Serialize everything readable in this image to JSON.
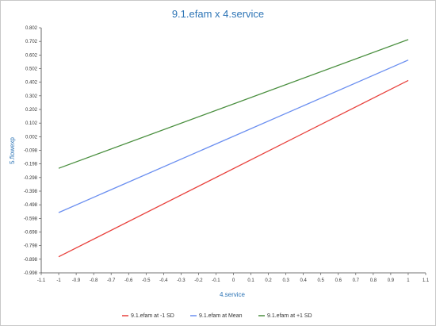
{
  "chart_data": {
    "type": "line",
    "title": "9.1.efam x 4.service",
    "xlabel": "4.service",
    "ylabel": "5.flowexp",
    "xlim": [
      -1.1,
      1.1
    ],
    "ylim": [
      -0.998,
      0.802
    ],
    "x_ticks": [
      "-1.1",
      "-1",
      "-0.9",
      "-0.8",
      "-0.7",
      "-0.6",
      "-0.5",
      "-0.4",
      "-0.3",
      "-0.2",
      "-0.1",
      "0",
      "0.1",
      "0.2",
      "0.3",
      "0.4",
      "0.5",
      "0.6",
      "0.7",
      "0.8",
      "0.9",
      "1",
      "1.1"
    ],
    "y_ticks": [
      "0.802",
      "0.702",
      "0.602",
      "0.502",
      "0.402",
      "0.302",
      "0.202",
      "0.102",
      "0.002",
      "-0.098",
      "-0.198",
      "-0.298",
      "-0.398",
      "-0.498",
      "-0.598",
      "-0.698",
      "-0.798",
      "-0.898",
      "-0.998"
    ],
    "grid": false,
    "legend_position": "bottom",
    "series": [
      {
        "name": "9.1.efam at -1 SD",
        "color": "#e8413c",
        "x": [
          -1,
          1
        ],
        "y": [
          -0.88,
          0.415
        ]
      },
      {
        "name": "9.1.efam at Mean",
        "color": "#6b8ff0",
        "x": [
          -1,
          1
        ],
        "y": [
          -0.555,
          0.565
        ]
      },
      {
        "name": "9.1.efam at +1 SD",
        "color": "#4a8f3f",
        "x": [
          -1,
          1
        ],
        "y": [
          -0.23,
          0.715
        ]
      }
    ]
  }
}
